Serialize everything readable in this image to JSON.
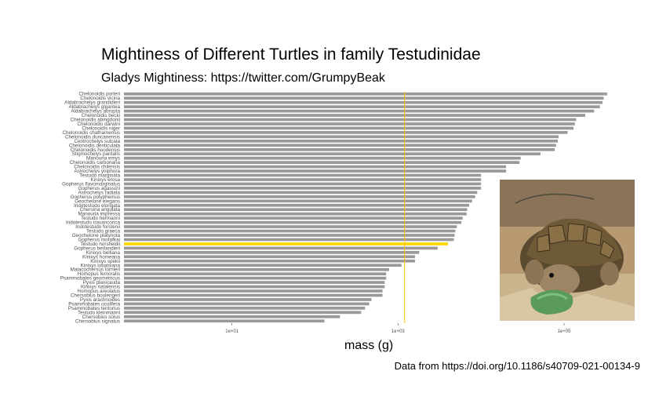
{
  "title": "Mightiness of Different Turtles in family Testudinidae",
  "subtitle": "Gladys Mightiness: https://twitter.com/GrumpyBeak",
  "caption": "Data from https://doi.org/10.1186/s40709-021-00134-9",
  "colors": {
    "bar": "#999999",
    "highlight": "#ffd700",
    "refline": "#ffc000"
  },
  "photo": {
    "icon": "tortoise-photo"
  },
  "chart_data": {
    "type": "bar",
    "orientation": "horizontal",
    "xlabel": "mass (g)",
    "ylabel": "",
    "x_scale": "log10",
    "xlim": [
      0.5,
      500000
    ],
    "x_ticks": [
      10,
      1000,
      100000
    ],
    "x_tick_labels": [
      "1e+01",
      "1e+03",
      "1e+05"
    ],
    "reference_line": 1200,
    "highlight": "Testudo horsfieldii",
    "grid": false,
    "categories": [
      "Chelonoidis porteri",
      "Chelonoidis vicina",
      "Aldabrachelys grandidieri",
      "Aldabrachelys gigantea",
      "Aldabrachelys abrupta",
      "Chelonoidis becki",
      "Chelonoidis abingdonii",
      "Chelonoidis darwini",
      "Chelonoidis niger",
      "Chelonoidis chathamensis",
      "Chelonoidis duncanensis",
      "Centrochelys sulcata",
      "Chelonoidis denticulata",
      "Chelonoidis hoodensis",
      "Stigmochelys pardalis",
      "Manouria emys",
      "Chelonoidis carbonaria",
      "Chelonoidis chilensis",
      "Astrochelys yniphora",
      "Testudo marginata",
      "Kinixys erosa",
      "Gopherus flavomarginatus",
      "Gopherus agassizii",
      "Astrochelys radiata",
      "Gopherus polyphemus",
      "Geochelone elegans",
      "Indotestudo elongata",
      "Chersina angulata",
      "Manouria impressa",
      "Testudo hermanni",
      "Indotestudo travancorica",
      "Indotestudo forstenii",
      "Testudo graeca",
      "Geochelone platynota",
      "Gopherus morafkai",
      "Testudo horsfieldii",
      "Gopherus berlandieri",
      "Kinixys belliana",
      "Kinixys homeana",
      "Kinixys spekii",
      "Kinixys lobatsiana",
      "Malacochersus tornieri",
      "Homopus femoralis",
      "Psammobates geometricus",
      "Pyxis planicauda",
      "Kinixys natalensis",
      "Homopus areolatus",
      "Chersobius boulengeri",
      "Pyxis arachnoides",
      "Psammobates oculifera",
      "Psammobates tentorius",
      "Testudo kleinmanni",
      "Chersobius solus",
      "Chersobius signatus"
    ],
    "values": [
      330000,
      300000,
      290000,
      270000,
      230000,
      180000,
      140000,
      135000,
      130000,
      110000,
      86000,
      84000,
      80000,
      77000,
      52000,
      30000,
      29000,
      20000,
      20000,
      10000,
      10000,
      10000,
      10000,
      9000,
      8500,
      7800,
      7200,
      6800,
      6700,
      6000,
      5800,
      5100,
      4900,
      4800,
      4700,
      4000,
      3000,
      1800,
      1600,
      1600,
      1100,
      780,
      720,
      720,
      690,
      690,
      650,
      650,
      480,
      450,
      400,
      360,
      200,
      130
    ]
  }
}
